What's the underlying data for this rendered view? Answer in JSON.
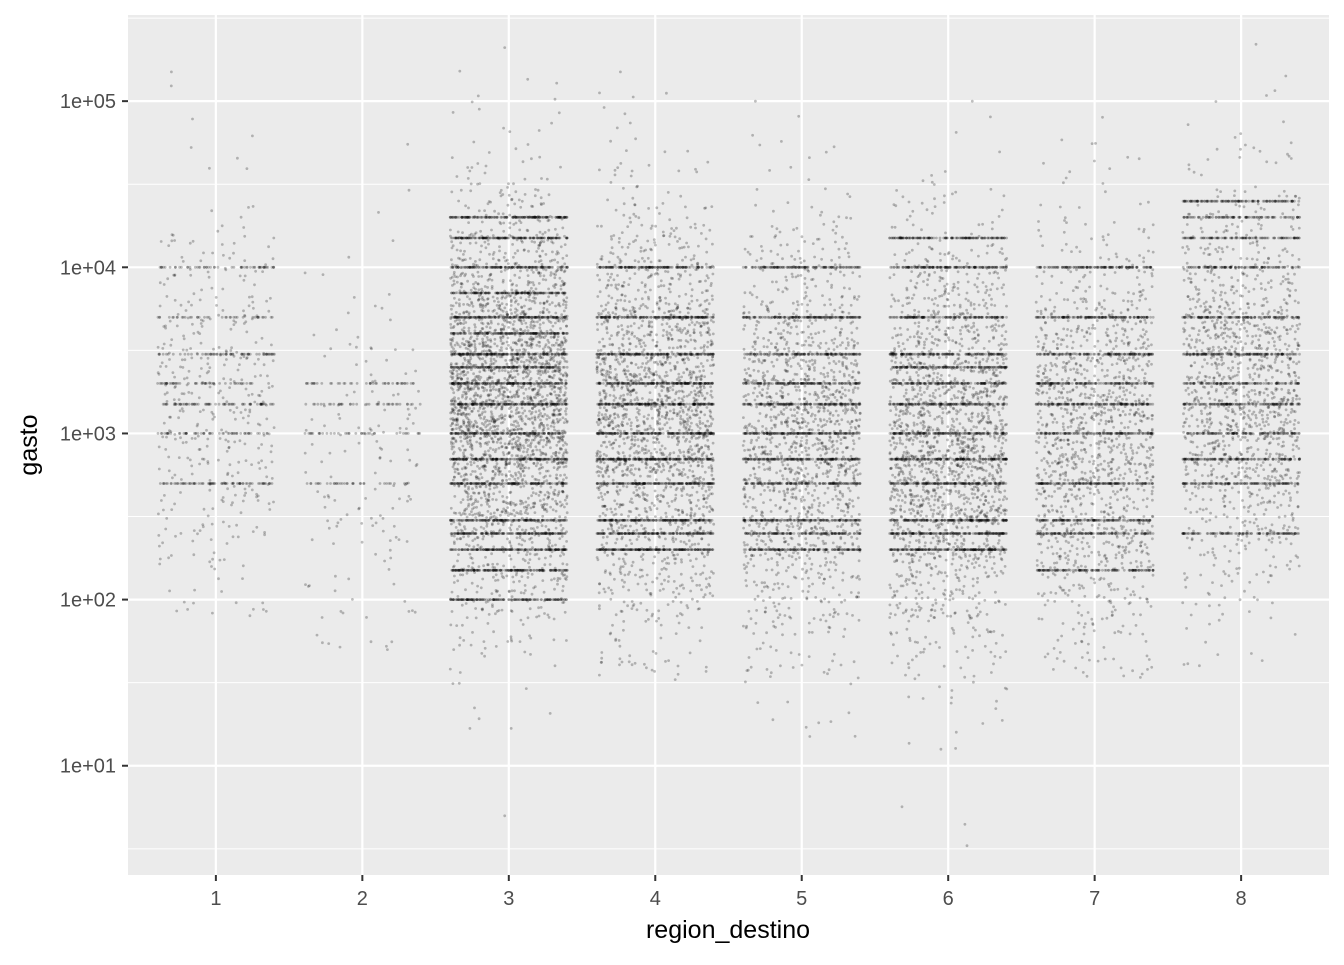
{
  "chart_data": {
    "type": "scatter",
    "title": "",
    "xlabel": "region_destino",
    "ylabel": "gasto",
    "x_scale": "categorical",
    "y_scale": "log10",
    "categories": [
      "1",
      "2",
      "3",
      "4",
      "5",
      "6",
      "7",
      "8"
    ],
    "x_tick_labels": [
      "1",
      "2",
      "3",
      "4",
      "5",
      "6",
      "7",
      "8"
    ],
    "y_ticks": [
      10,
      100,
      1000,
      10000,
      100000
    ],
    "y_tick_labels": [
      "1e+01",
      "1e+02",
      "1e+03",
      "1e+04",
      "1e+05"
    ],
    "ylim": [
      2.2,
      330000
    ],
    "jitter": 0.4,
    "point_opacity": 0.25,
    "grid": true,
    "legend": "none",
    "colors": {
      "panel_background": "#ebebeb",
      "grid_line": "#ffffff",
      "point": "#000000",
      "tick_label": "#4d4d4d"
    },
    "series": [
      {
        "category": "1",
        "n_points": 800,
        "center": 1500,
        "y_range": [
          80,
          150000
        ],
        "common_values": [
          500,
          1000,
          1500,
          2000,
          3000,
          5000,
          10000
        ]
      },
      {
        "category": "2",
        "n_points": 300,
        "center": 800,
        "y_range": [
          50,
          55000
        ],
        "common_values": [
          500,
          1000,
          1500,
          2000
        ]
      },
      {
        "category": "3",
        "n_points": 5500,
        "center": 1500,
        "y_range": [
          5,
          210000
        ],
        "common_values": [
          100,
          150,
          200,
          250,
          300,
          500,
          700,
          1000,
          1500,
          2000,
          2500,
          3000,
          4000,
          5000,
          7000,
          10000,
          15000,
          20000
        ]
      },
      {
        "category": "4",
        "n_points": 3800,
        "center": 1300,
        "y_range": [
          33,
          150000
        ],
        "common_values": [
          200,
          250,
          300,
          500,
          700,
          1000,
          1500,
          2000,
          3000,
          5000,
          10000
        ]
      },
      {
        "category": "5",
        "n_points": 3000,
        "center": 900,
        "y_range": [
          15,
          100000
        ],
        "common_values": [
          200,
          250,
          300,
          500,
          700,
          1000,
          1500,
          2000,
          3000,
          5000,
          10000
        ]
      },
      {
        "category": "6",
        "n_points": 3800,
        "center": 900,
        "y_range": [
          3.3,
          100000
        ],
        "common_values": [
          200,
          250,
          300,
          500,
          700,
          1000,
          1500,
          2000,
          2500,
          3000,
          5000,
          10000,
          15000
        ]
      },
      {
        "category": "7",
        "n_points": 2600,
        "center": 900,
        "y_range": [
          34,
          80000
        ],
        "common_values": [
          150,
          250,
          300,
          500,
          1000,
          1500,
          2000,
          3000,
          5000,
          10000
        ]
      },
      {
        "category": "8",
        "n_points": 2600,
        "center": 2000,
        "y_range": [
          40,
          220000
        ],
        "common_values": [
          250,
          500,
          700,
          1000,
          1500,
          2000,
          3000,
          5000,
          10000,
          15000,
          20000,
          25000
        ]
      }
    ]
  }
}
